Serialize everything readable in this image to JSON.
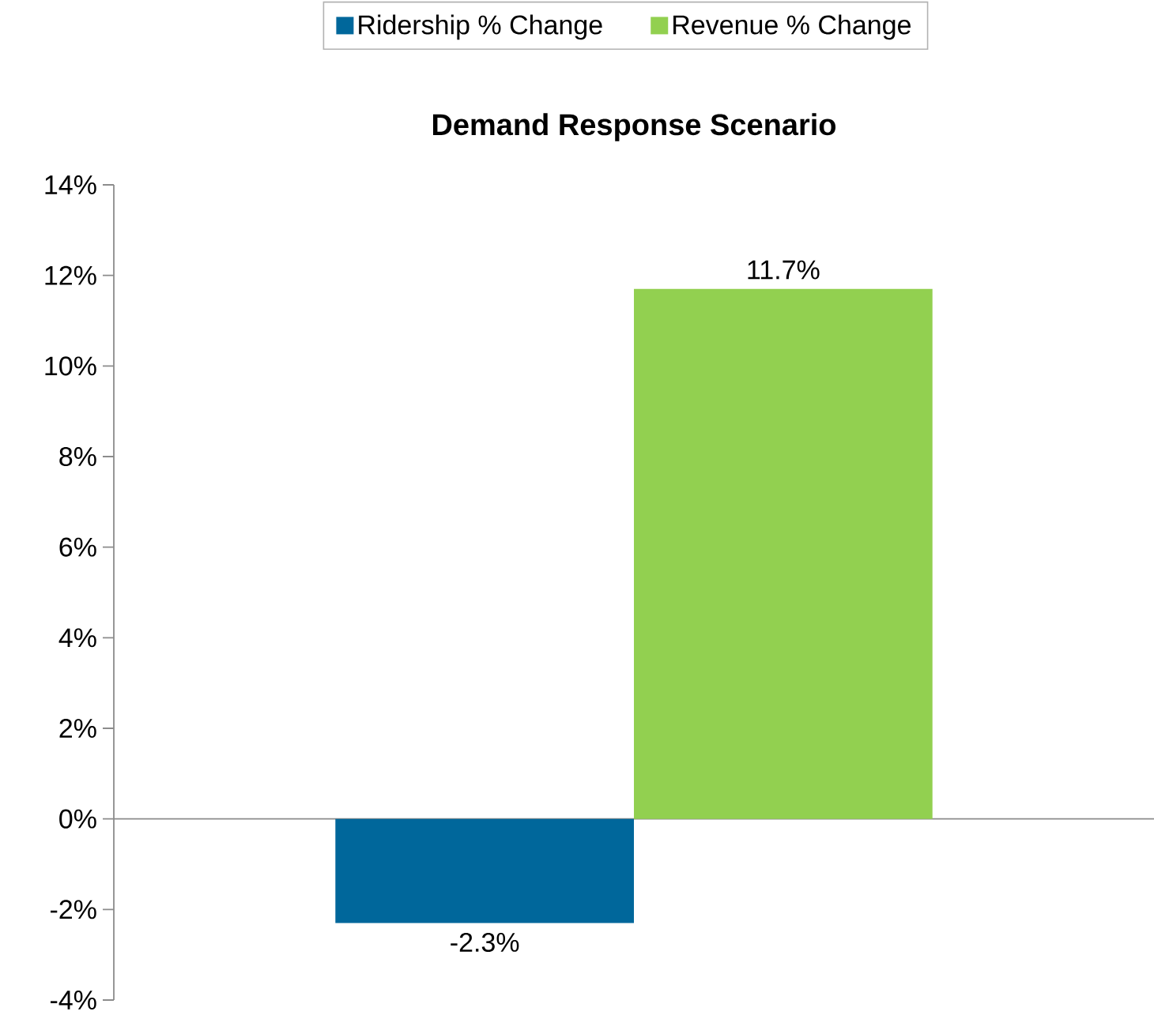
{
  "chart_data": {
    "type": "bar",
    "title": "Demand Response Scenario",
    "categories": [
      null
    ],
    "series": [
      {
        "name": "Ridership % Change",
        "color": "#00679b",
        "values": [
          -2.3
        ],
        "value_labels": [
          "-2.3%"
        ]
      },
      {
        "name": "Revenue % Change",
        "color": "#92d050",
        "values": [
          11.7
        ],
        "value_labels": [
          "11.7%"
        ]
      }
    ],
    "ylim": [
      -4,
      14
    ],
    "yticks": [
      {
        "value": -4,
        "label": "-4%"
      },
      {
        "value": -2,
        "label": "-2%"
      },
      {
        "value": 0,
        "label": "0%"
      },
      {
        "value": 2,
        "label": "2%"
      },
      {
        "value": 4,
        "label": "4%"
      },
      {
        "value": 6,
        "label": "6%"
      },
      {
        "value": 8,
        "label": "8%"
      },
      {
        "value": 10,
        "label": "10%"
      },
      {
        "value": 12,
        "label": "12%"
      },
      {
        "value": 14,
        "label": "14%"
      }
    ],
    "legend": "top"
  }
}
